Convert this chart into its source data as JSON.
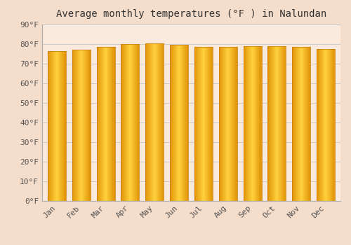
{
  "title": "Average monthly temperatures (°F ) in Nalundan",
  "months": [
    "Jan",
    "Feb",
    "Mar",
    "Apr",
    "May",
    "Jun",
    "Jul",
    "Aug",
    "Sep",
    "Oct",
    "Nov",
    "Dec"
  ],
  "values": [
    76.5,
    77.0,
    78.5,
    80.0,
    80.5,
    79.5,
    78.5,
    78.5,
    79.0,
    79.0,
    78.5,
    77.5
  ],
  "bar_color_left": "#E8A000",
  "bar_color_center": "#FFD04A",
  "background_color": "#F5DDCC",
  "plot_bg_color": "#FAEADE",
  "ylim": [
    0,
    90
  ],
  "ytick_step": 10,
  "grid_color": "#CCCCCC",
  "title_fontsize": 10,
  "tick_fontsize": 8,
  "font_family": "monospace"
}
